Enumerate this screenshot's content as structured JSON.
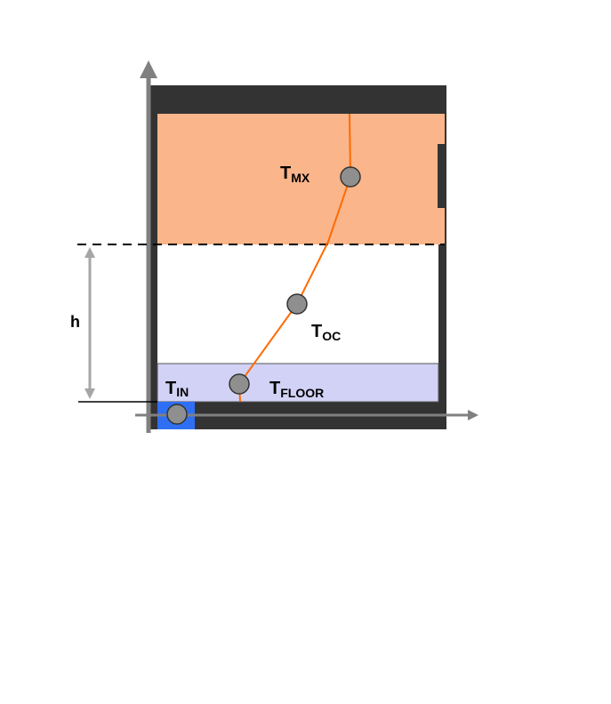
{
  "labels": {
    "h": "h",
    "t_mx": {
      "main": "T",
      "sub": "MX"
    },
    "t_oc": {
      "main": "T",
      "sub": "OC"
    },
    "t_in": {
      "main": "T",
      "sub": "IN"
    },
    "t_floor": {
      "main": "T",
      "sub": "FLOOR"
    }
  },
  "colors": {
    "wall": "#333333",
    "upper_zone": "#fbb58a",
    "occupied_zone": "#ffffff",
    "floor_zone": "#d2d2f6",
    "inlet": "#2f6ff3",
    "profile_line": "#ff6a00",
    "sensor_fill": "#8f8f8f",
    "axis": "#808080",
    "dim_arrow": "#a6a6a6"
  }
}
